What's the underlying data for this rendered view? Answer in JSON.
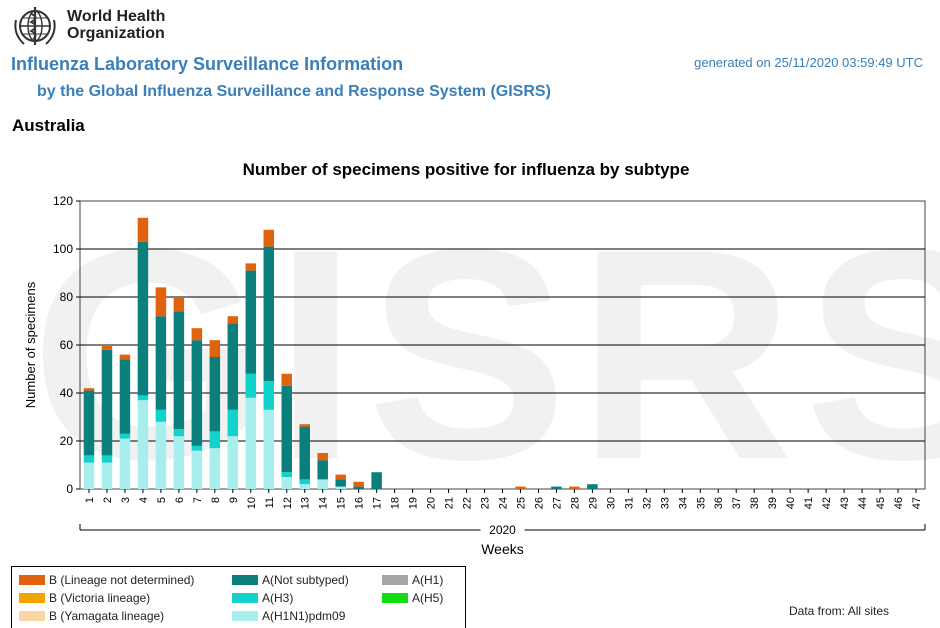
{
  "header": {
    "org_line1": "World Health",
    "org_line2": "Organization",
    "title": "Influenza Laboratory Surveillance Information",
    "subtitle": "by the Global Influenza Surveillance and Response System (GISRS)",
    "generated": "generated on 25/11/2020 03:59:49 UTC",
    "country": "Australia",
    "watermark": "GISRS"
  },
  "footer": {
    "data_from": "Data from: All sites"
  },
  "colors": {
    "b_not_determined": "#e0620d",
    "b_victoria": "#f4a400",
    "b_yamagata": "#fbd7a6",
    "a_not_subtyped": "#0a7f7c",
    "a_h3": "#11d3cc",
    "a_h1n1pdm09": "#a7eeed",
    "a_h1": "#a6a6a6",
    "a_h5": "#10dd10",
    "brand": "#3a7fb7"
  },
  "chart_data": {
    "type": "bar",
    "stacked": true,
    "title": "Number of specimens positive for influenza by subtype",
    "xlabel": "Weeks",
    "x_group_label": "2020",
    "ylabel": "Number of specimens",
    "ylim": [
      0,
      120
    ],
    "yticks": [
      0,
      20,
      40,
      60,
      80,
      100,
      120
    ],
    "grid": true,
    "legend_position": "bottom-left",
    "categories": [
      "1",
      "2",
      "3",
      "4",
      "5",
      "6",
      "7",
      "8",
      "9",
      "10",
      "11",
      "12",
      "13",
      "14",
      "15",
      "16",
      "17",
      "18",
      "19",
      "20",
      "21",
      "22",
      "23",
      "24",
      "25",
      "26",
      "27",
      "28",
      "29",
      "30",
      "31",
      "32",
      "33",
      "34",
      "35",
      "36",
      "37",
      "38",
      "39",
      "40",
      "41",
      "42",
      "43",
      "44",
      "45",
      "46",
      "47"
    ],
    "series": [
      {
        "name": "A(H1N1)pdm09",
        "color": "#a7eeed",
        "values": [
          11,
          11,
          21,
          37,
          28,
          22,
          16,
          17,
          22,
          38,
          33,
          5,
          2,
          4,
          1,
          0,
          0,
          0,
          0,
          0,
          0,
          0,
          0,
          0,
          0,
          0,
          0,
          0,
          0,
          0,
          0,
          0,
          0,
          0,
          0,
          0,
          0,
          0,
          0,
          0,
          0,
          0,
          0,
          0,
          0,
          0,
          0
        ]
      },
      {
        "name": "A(H3)",
        "color": "#11d3cc",
        "values": [
          3,
          3,
          2,
          2,
          5,
          3,
          2,
          7,
          11,
          10,
          12,
          2,
          2,
          0,
          0,
          0,
          0,
          0,
          0,
          0,
          0,
          0,
          0,
          0,
          0,
          0,
          0,
          0,
          0,
          0,
          0,
          0,
          0,
          0,
          0,
          0,
          0,
          0,
          0,
          0,
          0,
          0,
          0,
          0,
          0,
          0,
          0
        ]
      },
      {
        "name": "A(Not subtyped)",
        "color": "#0a7f7c",
        "values": [
          27,
          44,
          31,
          64,
          39,
          49,
          44,
          31,
          36,
          43,
          56,
          36,
          22,
          8,
          3,
          1,
          7,
          0,
          0,
          0,
          0,
          0,
          0,
          0,
          0,
          0,
          1,
          0,
          2,
          0,
          0,
          0,
          0,
          0,
          0,
          0,
          0,
          0,
          0,
          0,
          0,
          0,
          0,
          0,
          0,
          0,
          0
        ]
      },
      {
        "name": "A(H1)",
        "color": "#a6a6a6",
        "values": [
          0,
          0,
          0,
          0,
          0,
          0,
          0,
          0,
          0,
          0,
          0,
          0,
          0,
          0,
          0,
          0,
          0,
          0,
          0,
          0,
          0,
          0,
          0,
          0,
          0,
          0,
          0,
          0,
          0,
          0,
          0,
          0,
          0,
          0,
          0,
          0,
          0,
          0,
          0,
          0,
          0,
          0,
          0,
          0,
          0,
          0,
          0
        ]
      },
      {
        "name": "A(H5)",
        "color": "#10dd10",
        "values": [
          0,
          0,
          0,
          0,
          0,
          0,
          0,
          0,
          0,
          0,
          0,
          0,
          0,
          0,
          0,
          0,
          0,
          0,
          0,
          0,
          0,
          0,
          0,
          0,
          0,
          0,
          0,
          0,
          0,
          0,
          0,
          0,
          0,
          0,
          0,
          0,
          0,
          0,
          0,
          0,
          0,
          0,
          0,
          0,
          0,
          0,
          0
        ]
      },
      {
        "name": "B (Yamagata lineage)",
        "color": "#fbd7a6",
        "values": [
          0,
          0,
          0,
          0,
          0,
          0,
          0,
          0,
          0,
          0,
          0,
          0,
          0,
          0,
          0,
          0,
          0,
          0,
          0,
          0,
          0,
          0,
          0,
          0,
          0,
          0,
          0,
          0,
          0,
          0,
          0,
          0,
          0,
          0,
          0,
          0,
          0,
          0,
          0,
          0,
          0,
          0,
          0,
          0,
          0,
          0,
          0
        ]
      },
      {
        "name": "B (Victoria lineage)",
        "color": "#f4a400",
        "values": [
          0,
          0,
          0,
          0,
          0,
          0,
          0,
          0,
          0,
          0,
          0,
          0,
          0,
          0,
          0,
          0,
          0,
          0,
          0,
          0,
          0,
          0,
          0,
          0,
          0,
          0,
          0,
          0,
          0,
          0,
          0,
          0,
          0,
          0,
          0,
          0,
          0,
          0,
          0,
          0,
          0,
          0,
          0,
          0,
          0,
          0,
          0
        ]
      },
      {
        "name": "B (Lineage not determined)",
        "color": "#e0620d",
        "values": [
          1,
          2,
          2,
          10,
          12,
          6,
          5,
          7,
          3,
          3,
          7,
          5,
          1,
          3,
          2,
          2,
          0,
          0,
          0,
          0,
          0,
          0,
          0,
          0,
          1,
          0,
          0,
          1,
          0,
          0,
          0,
          0,
          0,
          0,
          0,
          0,
          0,
          0,
          0,
          0,
          0,
          0,
          0,
          0,
          0,
          0,
          0
        ]
      }
    ]
  }
}
